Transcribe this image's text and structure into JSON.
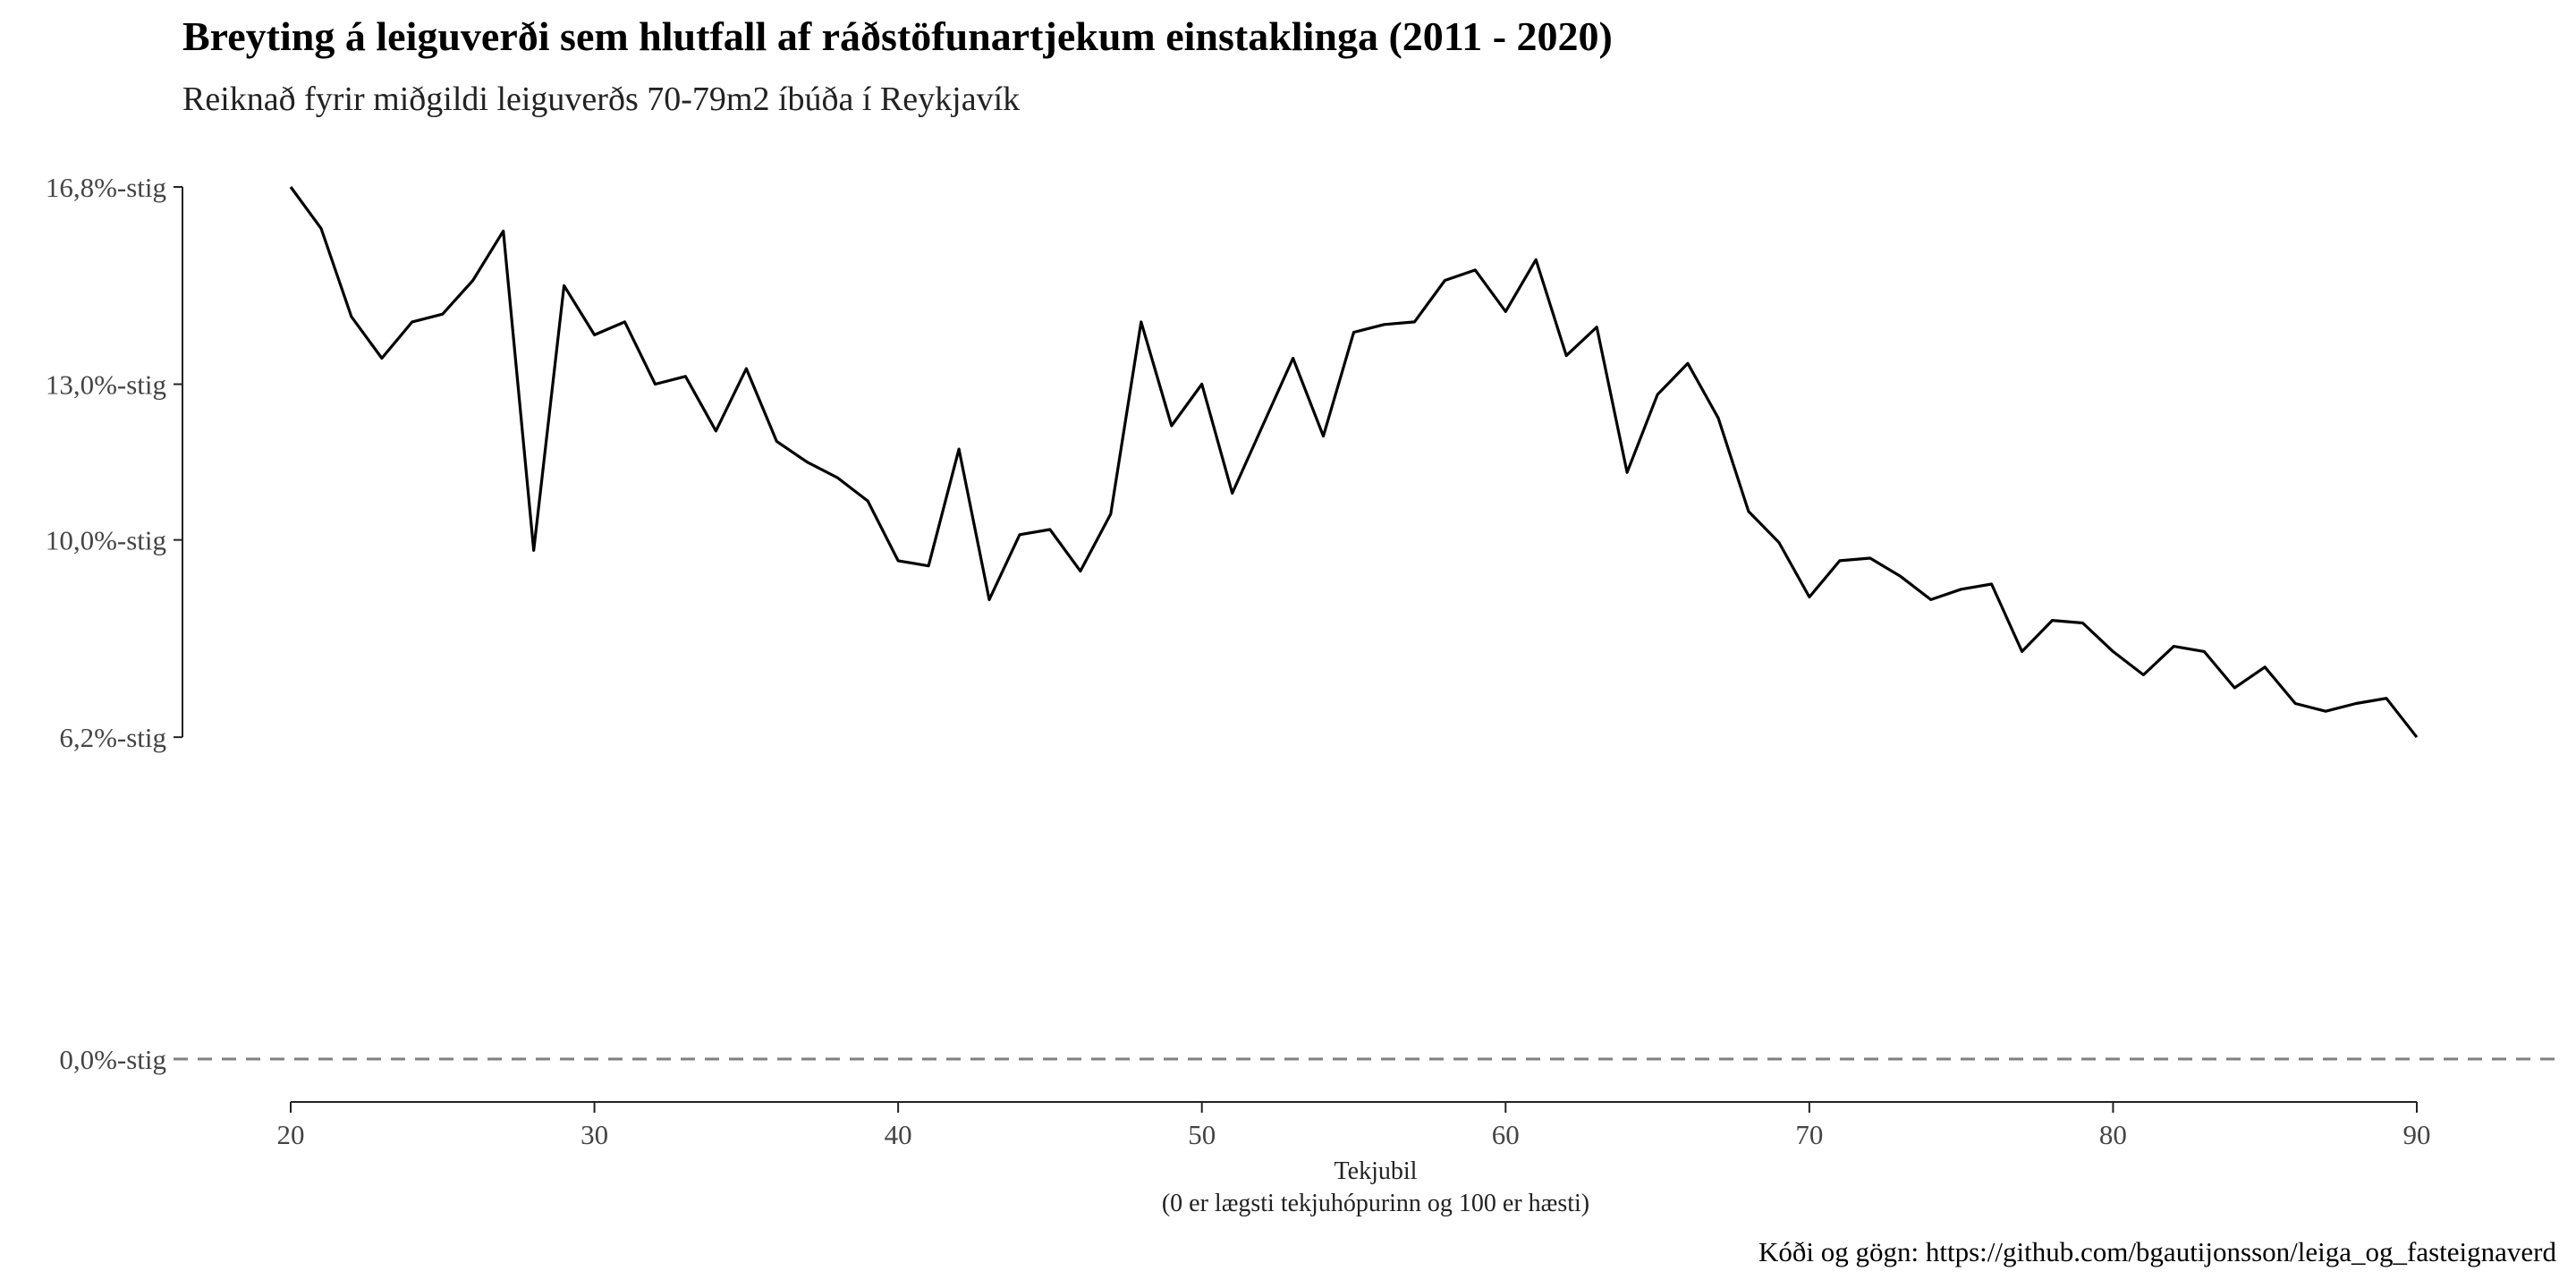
{
  "chart_data": {
    "type": "line",
    "title": "Breyting á leiguverði sem hlutfall af ráðstöfunartjekum einstaklinga (2011 - 2020)",
    "subtitle": "Reiknað fyrir miðgildi leiguverðs 70-79m2 íbúða í Reykjavík",
    "xlabel": "Tekjubil",
    "xlabel_sub": "(0 er lægsti tekjuhópurinn og 100 er hæsti)",
    "caption": "Kóði og gögn: https://github.com/bgautijonsson/leiga_og_fasteignaverd",
    "xlim": [
      20,
      90
    ],
    "ylim": [
      0,
      16.8
    ],
    "x_ticks": [
      20,
      30,
      40,
      50,
      60,
      70,
      80,
      90
    ],
    "x_tick_labels": [
      "20",
      "30",
      "40",
      "50",
      "60",
      "70",
      "80",
      "90"
    ],
    "y_ticks": [
      0,
      6.2,
      10.0,
      13.0,
      16.8
    ],
    "y_tick_labels": [
      "0,0%-stig",
      "6,2%-stig",
      "10,0%-stig",
      "13,0%-stig",
      "16,8%-stig"
    ],
    "reference_line": {
      "y": 0,
      "style": "dashed",
      "color": "#7f7f7f"
    },
    "line_color": "#000000",
    "grid": false,
    "x": [
      20,
      21,
      22,
      23,
      24,
      25,
      26,
      27,
      28,
      29,
      30,
      31,
      32,
      33,
      34,
      35,
      36,
      37,
      38,
      39,
      40,
      41,
      42,
      43,
      44,
      45,
      46,
      47,
      48,
      49,
      50,
      51,
      52,
      53,
      54,
      55,
      56,
      57,
      58,
      59,
      60,
      61,
      62,
      63,
      64,
      65,
      66,
      67,
      68,
      69,
      70,
      71,
      72,
      73,
      74,
      75,
      76,
      77,
      78,
      79,
      80,
      81,
      82,
      83,
      84,
      85,
      86,
      87,
      88,
      89,
      90
    ],
    "y": [
      16.8,
      16.0,
      14.3,
      13.5,
      14.2,
      14.35,
      15.0,
      15.95,
      9.8,
      14.9,
      13.95,
      14.2,
      13.0,
      13.15,
      12.1,
      13.3,
      11.9,
      11.5,
      11.2,
      10.75,
      9.6,
      9.5,
      11.75,
      8.85,
      10.1,
      10.2,
      9.4,
      10.5,
      14.2,
      12.2,
      13.0,
      10.9,
      12.2,
      13.5,
      12.0,
      14.0,
      14.15,
      14.2,
      15.0,
      15.2,
      14.4,
      15.4,
      13.55,
      14.1,
      11.3,
      12.8,
      13.4,
      12.35,
      10.55,
      9.95,
      8.9,
      9.6,
      9.65,
      9.3,
      8.85,
      9.05,
      9.15,
      7.85,
      8.45,
      8.4,
      7.85,
      7.4,
      7.95,
      7.85,
      7.15,
      7.55,
      6.85,
      6.7,
      6.85,
      6.95,
      6.2
    ]
  }
}
